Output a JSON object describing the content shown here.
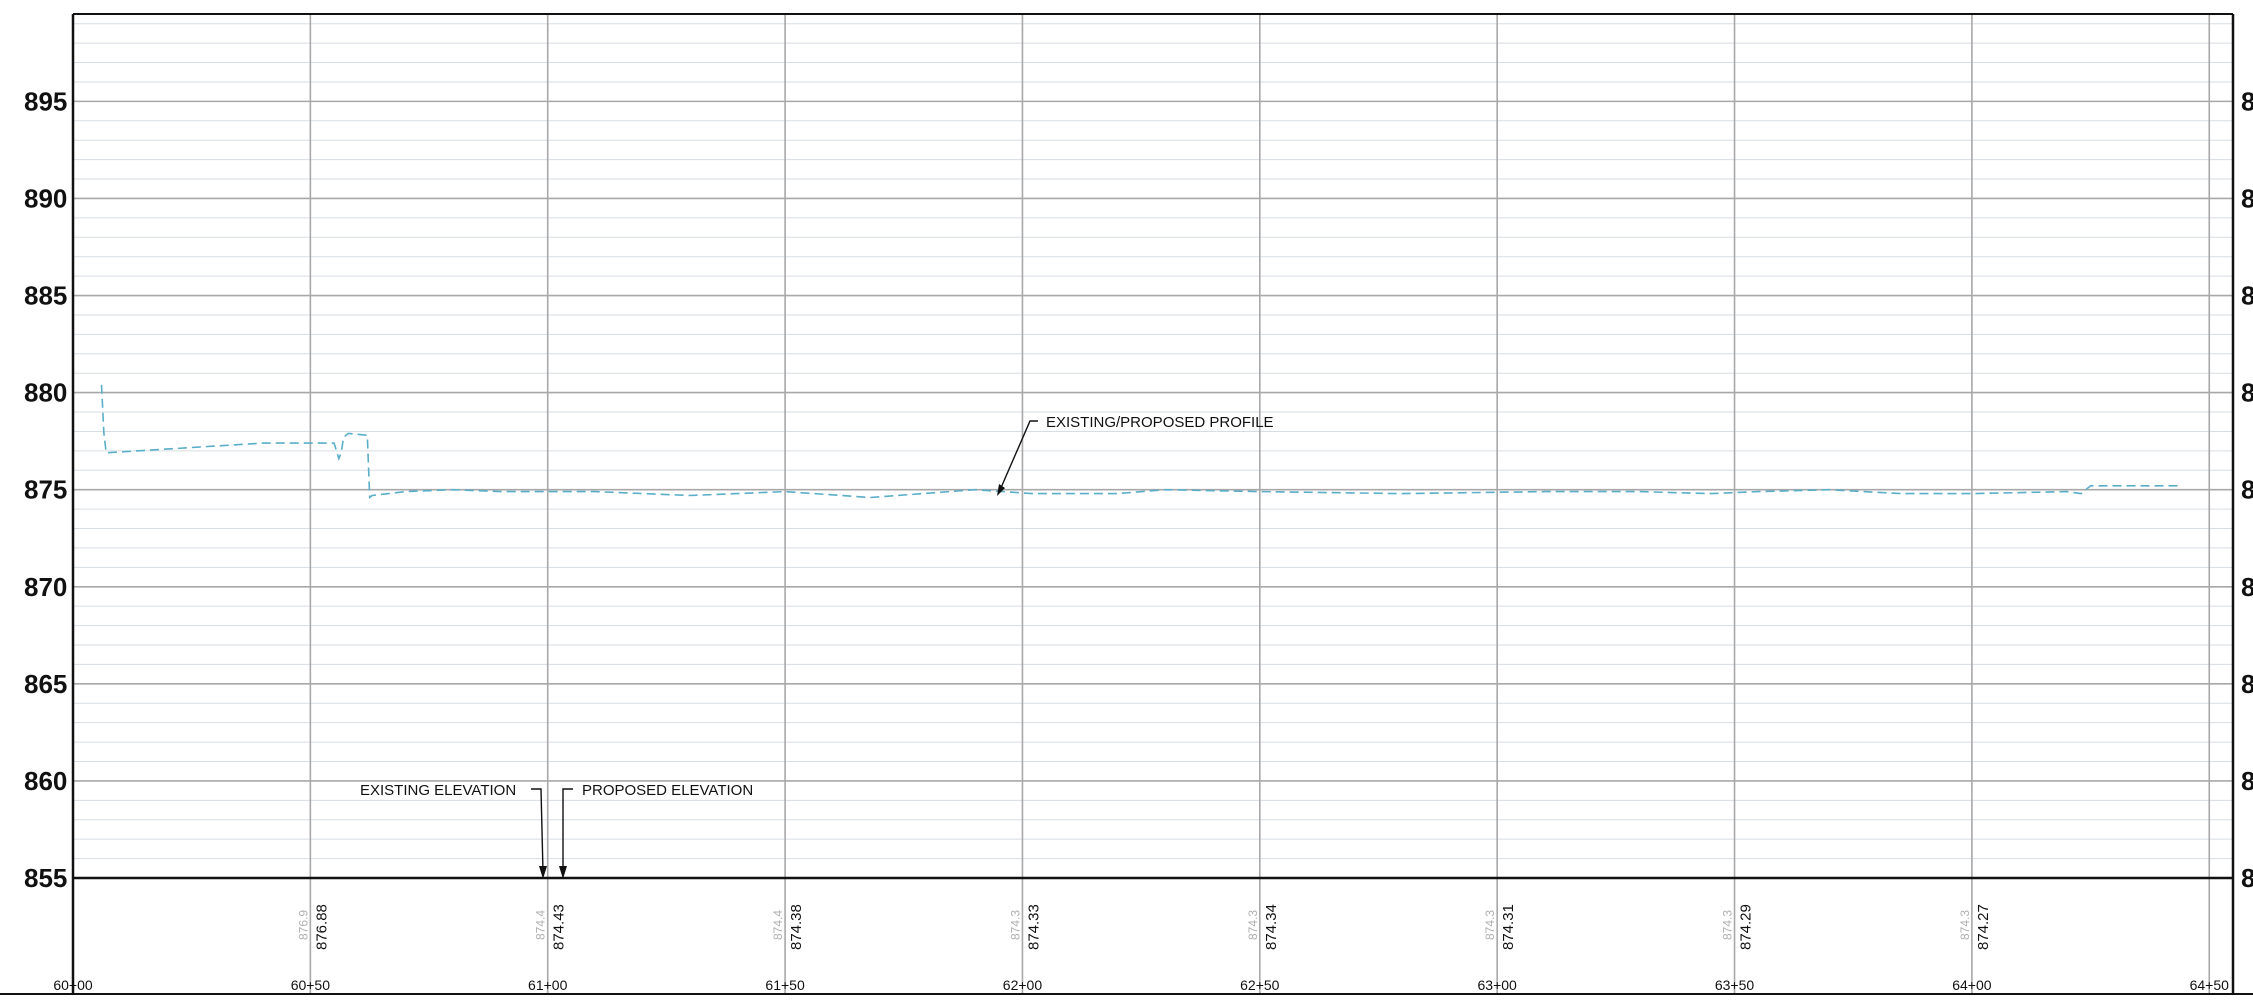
{
  "chart_data": {
    "type": "line",
    "title": "",
    "xlabel": "",
    "ylabel": "",
    "xlim": [
      6000,
      6455
    ],
    "ylim": [
      855,
      899.5
    ],
    "y_ticks": [
      855,
      860,
      865,
      870,
      875,
      880,
      885,
      890,
      895
    ],
    "y_tick_labels": [
      "855",
      "860",
      "865",
      "870",
      "875",
      "880",
      "885",
      "890",
      "895"
    ],
    "right_axis_tick_glyph": "8",
    "x_ticks": [
      6000,
      6050,
      6100,
      6150,
      6200,
      6250,
      6300,
      6350,
      6400,
      6450
    ],
    "x_tick_labels": [
      "60+00",
      "60+50",
      "61+00",
      "61+50",
      "62+00",
      "62+50",
      "63+00",
      "63+50",
      "64+00",
      "64+50"
    ],
    "grid": true,
    "series": [
      {
        "color": "#5aaec8",
        "style": "dashed",
        "x": [
          6006,
          6006.5,
          6007,
          6040,
          6055,
          6056,
          6056.5,
          6057,
          6058,
          6062,
          6062.5,
          6063,
          6070,
          6080,
          6090,
          6110,
          6130,
          6150,
          6168,
          6190,
          6202,
          6220,
          6230,
          6250,
          6280,
          6310,
          6330,
          6345,
          6355,
          6370,
          6385,
          6400,
          6420,
          6423,
          6425,
          6433,
          6444
        ],
        "y": [
          880.4,
          877.9,
          876.9,
          877.4,
          877.4,
          876.6,
          876.9,
          877.7,
          877.9,
          877.8,
          874.6,
          874.7,
          874.9,
          875.0,
          874.9,
          874.9,
          874.7,
          874.9,
          874.6,
          875.0,
          874.8,
          874.8,
          875.0,
          874.9,
          874.8,
          874.9,
          874.9,
          874.8,
          874.9,
          875.0,
          874.8,
          874.8,
          874.9,
          874.8,
          875.2,
          875.2,
          875.2
        ]
      }
    ],
    "elevation_band": {
      "stations": [
        6050,
        6100,
        6150,
        6200,
        6250,
        6300,
        6350,
        6400
      ],
      "proposed": [
        "876.88",
        "874.43",
        "874.38",
        "874.33",
        "874.34",
        "874.31",
        "874.29",
        "874.27"
      ],
      "existing": [
        "876.9",
        "874.4",
        "874.4",
        "874.3",
        "874.3",
        "874.3",
        "874.3",
        "874.3"
      ]
    },
    "annotations": {
      "profile": "EXISTING/PROPOSED PROFILE",
      "existing_elevation": "EXISTING ELEVATION",
      "proposed_elevation": "PROPOSED ELEVATION"
    }
  }
}
